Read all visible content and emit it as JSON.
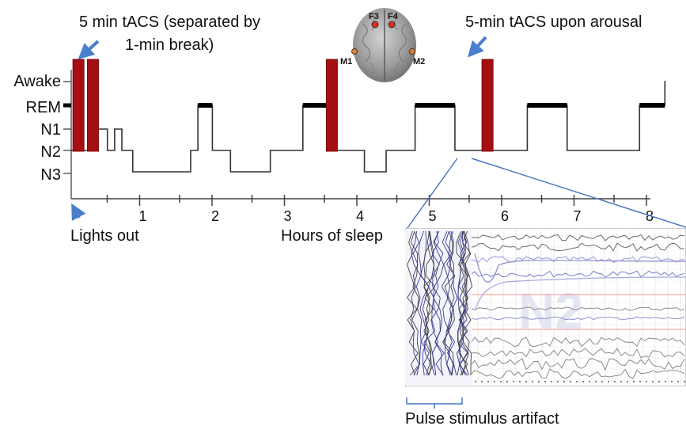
{
  "annotations": {
    "tacs_pair_line1": "5 min tACS (separated by",
    "tacs_pair_line2": "1-min break)",
    "tacs_arousal": "5-min tACS upon arousal",
    "lights_out": "Lights out",
    "hours_label": "Hours of sleep",
    "pulse_artifact": "Pulse stimulus artifact"
  },
  "stages": [
    "Awake",
    "REM",
    "N1",
    "N2",
    "N3"
  ],
  "hour_ticks": [
    "1",
    "2",
    "3",
    "4",
    "5",
    "6",
    "7",
    "8"
  ],
  "electrodes": [
    "F3",
    "F4",
    "M1",
    "M2"
  ],
  "inset_watermark": "N2",
  "colors": {
    "stim_bar": "#a50f12",
    "arrow": "#4a7fcc",
    "zoom_line": "#4a78c0",
    "electrode": "#d9301f",
    "mastoid": "#e27a35"
  },
  "chart_data": {
    "type": "line",
    "xlabel": "Hours of sleep",
    "xlim": [
      0,
      8.5
    ],
    "ylabel": "",
    "y_categories": [
      "N3",
      "N2",
      "N1",
      "REM",
      "Awake"
    ],
    "series": [
      {
        "hypnogram_steps": [
          [
            0.0,
            "N2"
          ],
          [
            0.35,
            "N1"
          ],
          [
            0.5,
            "N2"
          ],
          [
            0.6,
            "N1"
          ],
          [
            0.7,
            "N2"
          ],
          [
            0.8,
            "N2"
          ],
          [
            0.85,
            "N3"
          ],
          [
            1.65,
            "N2"
          ],
          [
            1.75,
            "REM"
          ],
          [
            1.95,
            "N2"
          ],
          [
            2.2,
            "N3"
          ],
          [
            2.75,
            "N2"
          ],
          [
            3.2,
            "REM"
          ],
          [
            3.6,
            "N2"
          ],
          [
            3.95,
            "N2"
          ],
          [
            4.05,
            "N3"
          ],
          [
            4.35,
            "N2"
          ],
          [
            4.75,
            "REM"
          ],
          [
            5.3,
            "N2"
          ],
          [
            5.75,
            "N2"
          ],
          [
            6.3,
            "REM"
          ],
          [
            6.85,
            "N2"
          ],
          [
            7.85,
            "REM"
          ],
          [
            8.2,
            "Awake"
          ]
        ]
      }
    ],
    "stimulation_bars_hours": [
      0.1,
      0.3,
      3.6,
      5.75
    ]
  }
}
